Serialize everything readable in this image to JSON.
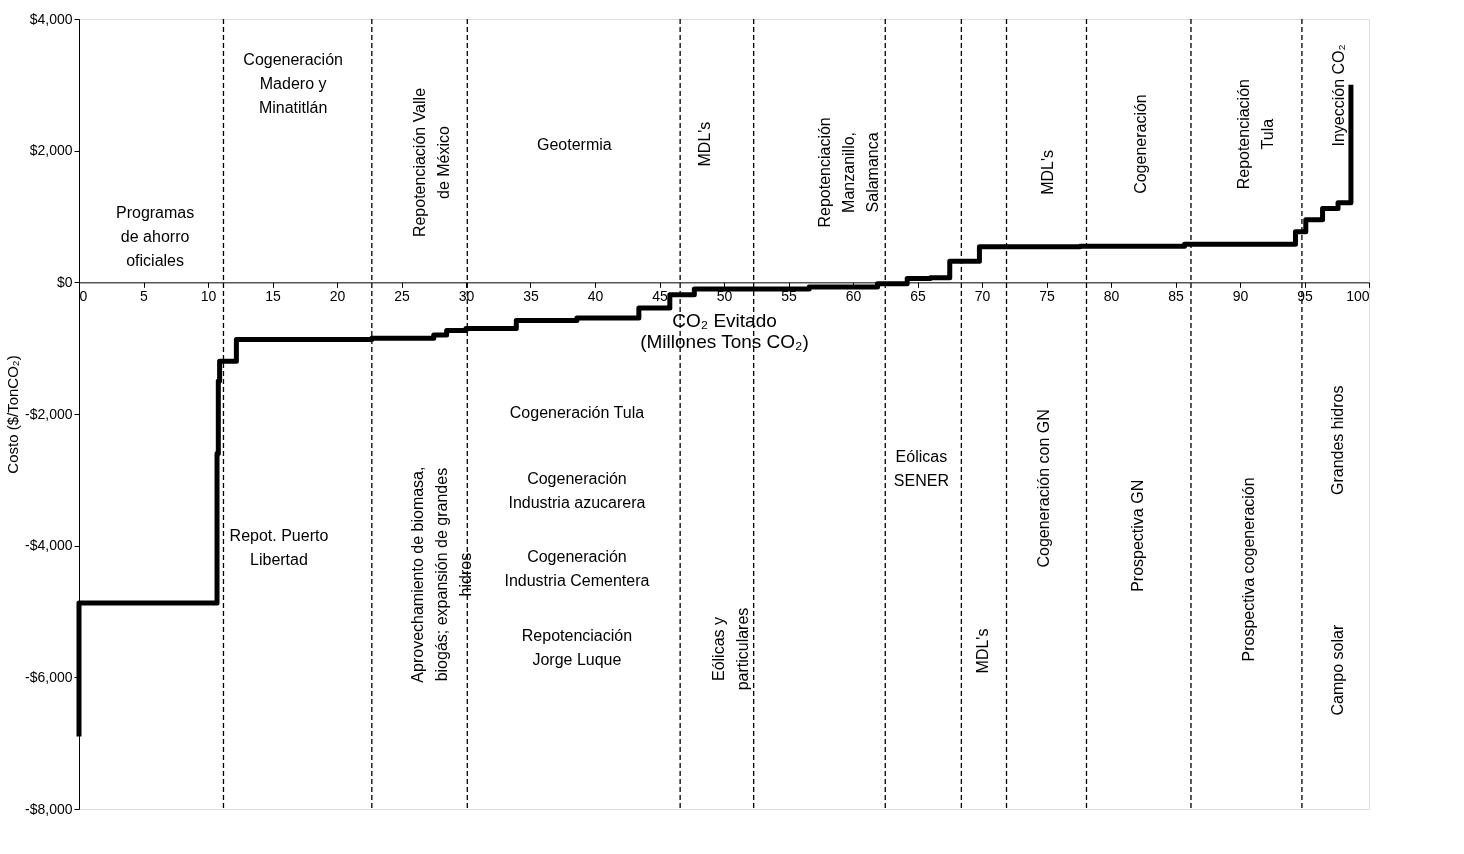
{
  "chart_data": {
    "type": "step",
    "ylabel": "Costo ($/TonCO₂)",
    "xlabel": "CO₂ Evitado\n(Millones Tons CO₂)",
    "x": [
      0,
      0,
      10.7,
      10.8,
      10.9,
      12.2,
      22.7,
      27.5,
      28.5,
      30,
      33.9,
      38.6,
      43.4,
      45.8,
      47.7,
      56.6,
      61.9,
      64.2,
      66,
      67.5,
      69.8,
      77.6,
      85.7,
      94.3,
      95.1,
      96.4,
      97.6,
      98.6
    ],
    "values": [
      -6900,
      -4870,
      -2600,
      -1500,
      -1200,
      -870,
      -850,
      -800,
      -730,
      -700,
      -580,
      -540,
      -390,
      -190,
      -100,
      -70,
      -20,
      60,
      70,
      320,
      540,
      550,
      580,
      770,
      950,
      1120,
      1210,
      3000
    ],
    "color": "#000000",
    "xlim": [
      0,
      100
    ],
    "xticks": [
      0,
      5,
      10,
      15,
      20,
      25,
      30,
      35,
      40,
      45,
      50,
      55,
      60,
      65,
      70,
      75,
      80,
      85,
      90,
      95,
      100
    ],
    "ylim": [
      -8000,
      4000
    ],
    "yticks": [
      {
        "value": -8000,
        "label": "-$8,000"
      },
      {
        "value": -6000,
        "label": "-$6,000"
      },
      {
        "value": -4000,
        "label": "-$4,000"
      },
      {
        "value": -2000,
        "label": "-$2,000"
      },
      {
        "value": 0,
        "label": "$0"
      },
      {
        "value": 2000,
        "label": "$2,000"
      },
      {
        "value": 4000,
        "label": "$4,000"
      }
    ],
    "marker": "none",
    "line_style": "solid",
    "ref_lines": [
      {
        "axis": "x",
        "value": 11.2,
        "line_style": "dashed",
        "color": "#000000"
      },
      {
        "axis": "x",
        "value": 22.7,
        "line_style": "dashed",
        "color": "#000000"
      },
      {
        "axis": "x",
        "value": 30.1,
        "line_style": "dashed",
        "color": "#000000"
      },
      {
        "axis": "x",
        "value": 46.6,
        "line_style": "dashed",
        "color": "#000000"
      },
      {
        "axis": "x",
        "value": 52.3,
        "line_style": "dashed",
        "color": "#000000"
      },
      {
        "axis": "x",
        "value": 62.5,
        "line_style": "dashed",
        "color": "#000000"
      },
      {
        "axis": "x",
        "value": 68.4,
        "line_style": "dashed",
        "color": "#000000"
      },
      {
        "axis": "x",
        "value": 71.9,
        "line_style": "dashed",
        "color": "#000000"
      },
      {
        "axis": "x",
        "value": 78.1,
        "line_style": "dashed",
        "color": "#000000"
      },
      {
        "axis": "x",
        "value": 86.2,
        "line_style": "dashed",
        "color": "#000000"
      },
      {
        "axis": "x",
        "value": 94.8,
        "line_style": "dashed",
        "color": "#000000"
      }
    ],
    "annotations": [
      "Programas\nde ahorro\noficiales",
      "Cogeneración\nMadero y\nMinatitlán",
      "Repotenciación Valle\nde  México",
      "Geotermia",
      "MDL's",
      "Repotenciación\nManzanillo,\nSalamanca",
      "MDL's",
      "Cogeneración",
      "Repotenciación\nTula",
      "Inyección CO₂",
      "Repot. Puerto\nLibertad",
      "Aprovechamiento de biomasa,\nbiogás; expansión de grandes\nhidros",
      "Cogeneración Tula",
      "Cogeneración\nIndustria azucarera",
      "Cogeneración\nIndustria Cementera",
      "Repotenciación\nJorge Luque",
      "Eólicas y\nparticulares",
      "Eólicas\nSENER",
      "MDL's",
      "Cogeneración con GN",
      "Prospectiva GN",
      "Prospectiva cogeneración",
      "Grandes hidros",
      "Campo solar"
    ]
  }
}
